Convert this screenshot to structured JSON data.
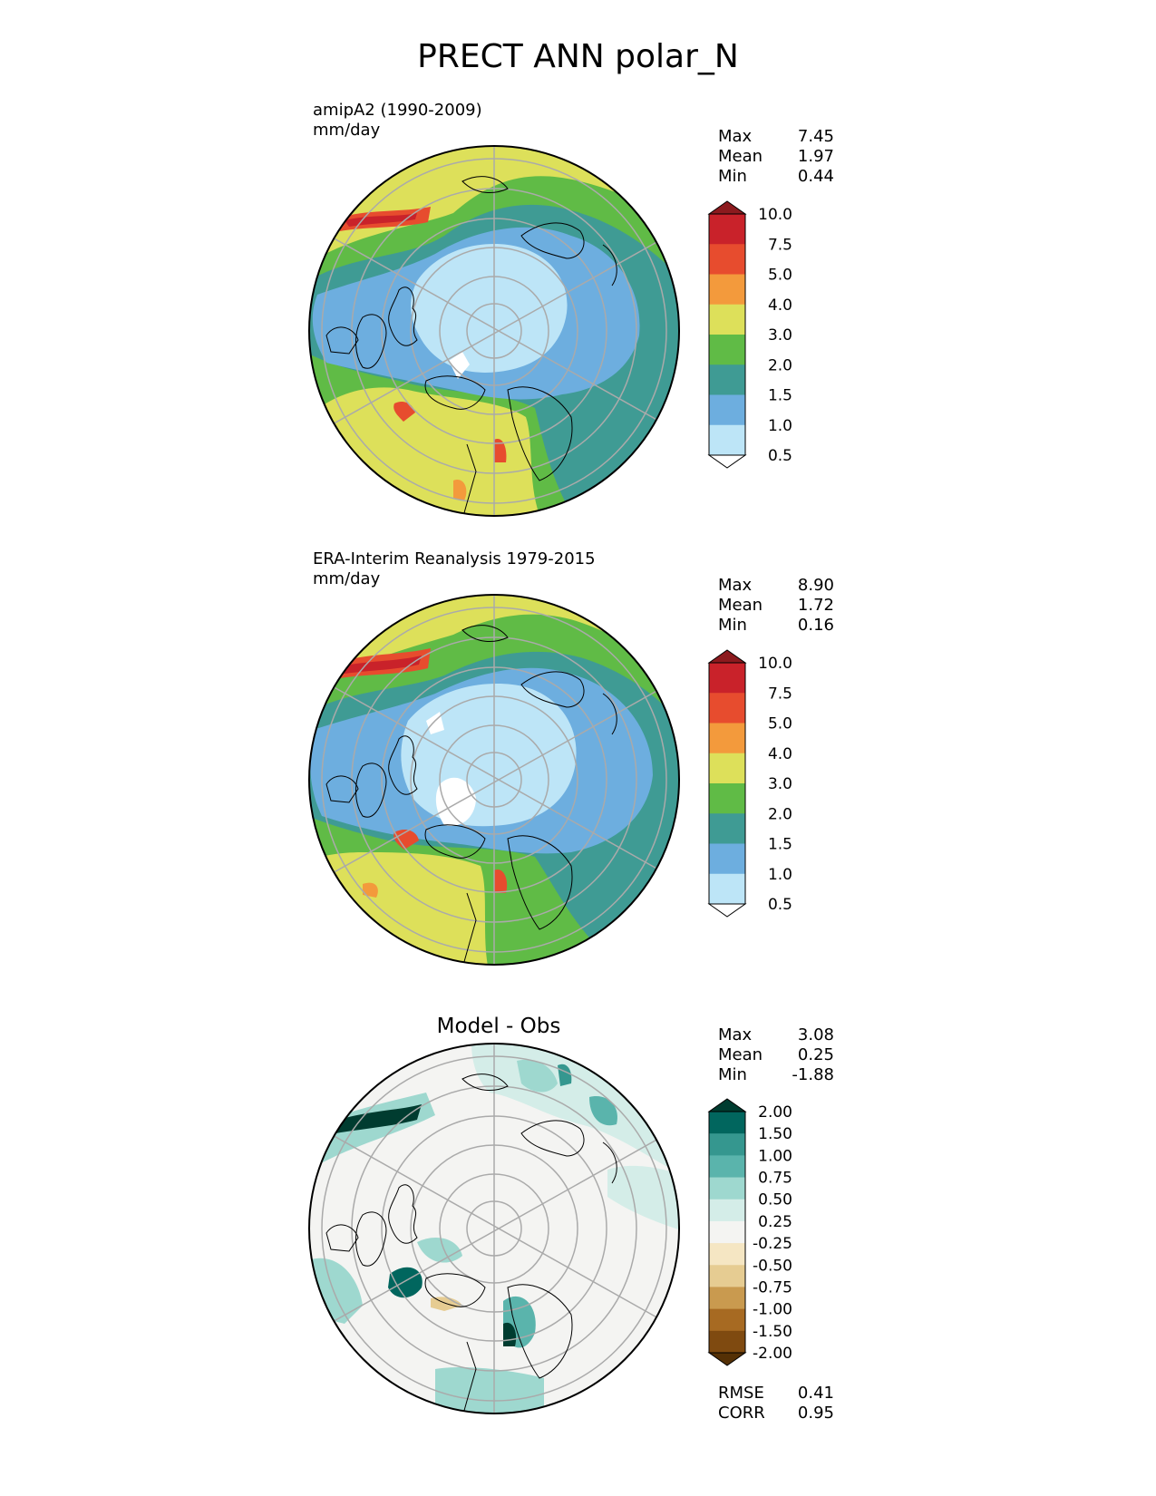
{
  "figure": {
    "title": "PRECT ANN polar_N"
  },
  "panels": [
    {
      "title_line1": "amipA2 (1990-2009)",
      "title_line2": "mm/day",
      "stats": [
        {
          "label": "Max",
          "value": "7.45"
        },
        {
          "label": "Mean",
          "value": "1.97"
        },
        {
          "label": "Min",
          "value": "0.44"
        }
      ]
    },
    {
      "title_line1": "ERA-Interim Reanalysis 1979-2015",
      "title_line2": "mm/day",
      "stats": [
        {
          "label": "Max",
          "value": "8.90"
        },
        {
          "label": "Mean",
          "value": "1.72"
        },
        {
          "label": "Min",
          "value": "0.16"
        }
      ]
    },
    {
      "title": "Model - Obs",
      "stats": [
        {
          "label": "Max",
          "value": "3.08"
        },
        {
          "label": "Mean",
          "value": "0.25"
        },
        {
          "label": "Min",
          "value": "-1.88"
        }
      ],
      "metrics": [
        {
          "label": "RMSE",
          "value": "0.41"
        },
        {
          "label": "CORR",
          "value": "0.95"
        }
      ]
    }
  ],
  "colorbars": {
    "precip": {
      "labels": [
        "10.0",
        "7.5",
        "5.0",
        "4.0",
        "3.0",
        "2.0",
        "1.5",
        "1.0",
        "0.5"
      ],
      "colors": [
        "#8c1a1e",
        "#c9222a",
        "#e74c2e",
        "#f39a3c",
        "#dde05a",
        "#60bb46",
        "#3f9b94",
        "#6daedf",
        "#bde5f7",
        "#ffffff"
      ]
    },
    "diff": {
      "labels": [
        "2.00",
        "1.50",
        "1.00",
        "0.75",
        "0.50",
        "0.25",
        "-0.25",
        "-0.50",
        "-0.75",
        "-1.00",
        "-1.50",
        "-2.00"
      ],
      "colors": [
        "#003c30",
        "#01665e",
        "#35978f",
        "#5ab4ac",
        "#9ed8cf",
        "#d4ede8",
        "#f4f4f2",
        "#f5e6c3",
        "#e6cc92",
        "#c99a4f",
        "#a76a22",
        "#7f4a10",
        "#543005"
      ]
    }
  }
}
